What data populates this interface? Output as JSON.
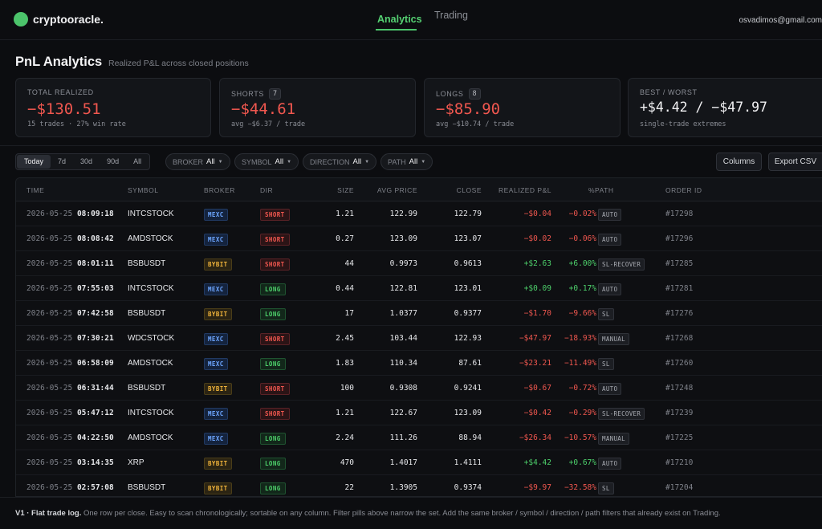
{
  "app": {
    "name": "cryptooracle.",
    "brand_color": "#4cc46b"
  },
  "nav": {
    "tabs": [
      {
        "label": "Analytics",
        "active": true
      },
      {
        "label": "Trading",
        "active": false
      }
    ]
  },
  "user": {
    "email": "osvadimos@gmail.com"
  },
  "page": {
    "title": "PnL Analytics",
    "subtitle": "Realized P&L across closed positions"
  },
  "cards": [
    {
      "label": "TOTAL REALIZED",
      "badge": "",
      "value": "−$130.51",
      "foot": "15 trades · 27% win rate"
    },
    {
      "label": "SHORTS",
      "badge": "7",
      "value": "−$44.61",
      "foot": "avg −$6.37 / trade"
    },
    {
      "label": "LONGS",
      "badge": "8",
      "value": "−$85.90",
      "foot": "avg −$10.74 / trade"
    },
    {
      "label": "BEST / WORST",
      "badge": "",
      "value": "+$4.42 / −$47.97",
      "foot": "single-trade extremes"
    }
  ],
  "filters": {
    "ranges": [
      "Today",
      "7d",
      "30d",
      "90d",
      "All"
    ],
    "active_range": "Today",
    "pills": [
      {
        "label": "BROKER",
        "value": "All"
      },
      {
        "label": "SYMBOL",
        "value": "All"
      },
      {
        "label": "DIRECTION",
        "value": "All"
      },
      {
        "label": "PATH",
        "value": "All"
      }
    ],
    "columns_label": "Columns",
    "export_label": "Export CSV"
  },
  "table": {
    "headers": [
      "TIME",
      "SYMBOL",
      "BROKER",
      "DIR",
      "SIZE",
      "AVG PRICE",
      "CLOSE",
      "REALIZED P&L",
      "%PATH",
      "ORDER ID"
    ],
    "rows": [
      {
        "date": "2026-05-25",
        "time": "08:09:18",
        "symbol": "INTCSTOCK",
        "broker": "MEXC",
        "dir": "SHORT",
        "size": "1.21",
        "avg": "122.99",
        "close": "122.79",
        "pnl": "−$0.04",
        "pct": "−0.02%",
        "path": "AUTO",
        "order": "#17298"
      },
      {
        "date": "2026-05-25",
        "time": "08:08:42",
        "symbol": "AMDSTOCK",
        "broker": "MEXC",
        "dir": "SHORT",
        "size": "0.27",
        "avg": "123.09",
        "close": "123.07",
        "pnl": "−$0.02",
        "pct": "−0.06%",
        "path": "AUTO",
        "order": "#17296"
      },
      {
        "date": "2026-05-25",
        "time": "08:01:11",
        "symbol": "BSBUSDT",
        "broker": "BYBIT",
        "dir": "SHORT",
        "size": "44",
        "avg": "0.9973",
        "close": "0.9613",
        "pnl": "+$2.63",
        "pct": "+6.00%",
        "path": "SL-RECOVER",
        "order": "#17285"
      },
      {
        "date": "2026-05-25",
        "time": "07:55:03",
        "symbol": "INTCSTOCK",
        "broker": "MEXC",
        "dir": "LONG",
        "size": "0.44",
        "avg": "122.81",
        "close": "123.01",
        "pnl": "+$0.09",
        "pct": "+0.17%",
        "path": "AUTO",
        "order": "#17281"
      },
      {
        "date": "2026-05-25",
        "time": "07:42:58",
        "symbol": "BSBUSDT",
        "broker": "BYBIT",
        "dir": "LONG",
        "size": "17",
        "avg": "1.0377",
        "close": "0.9377",
        "pnl": "−$1.70",
        "pct": "−9.66%",
        "path": "SL",
        "order": "#17276"
      },
      {
        "date": "2026-05-25",
        "time": "07:30:21",
        "symbol": "WDCSTOCK",
        "broker": "MEXC",
        "dir": "SHORT",
        "size": "2.45",
        "avg": "103.44",
        "close": "122.93",
        "pnl": "−$47.97",
        "pct": "−18.93%",
        "path": "MANUAL",
        "order": "#17268"
      },
      {
        "date": "2026-05-25",
        "time": "06:58:09",
        "symbol": "AMDSTOCK",
        "broker": "MEXC",
        "dir": "LONG",
        "size": "1.83",
        "avg": "110.34",
        "close": "87.61",
        "pnl": "−$23.21",
        "pct": "−11.49%",
        "path": "SL",
        "order": "#17260"
      },
      {
        "date": "2026-05-25",
        "time": "06:31:44",
        "symbol": "BSBUSDT",
        "broker": "BYBIT",
        "dir": "SHORT",
        "size": "100",
        "avg": "0.9308",
        "close": "0.9241",
        "pnl": "−$0.67",
        "pct": "−0.72%",
        "path": "AUTO",
        "order": "#17248"
      },
      {
        "date": "2026-05-25",
        "time": "05:47:12",
        "symbol": "INTCSTOCK",
        "broker": "MEXC",
        "dir": "SHORT",
        "size": "1.21",
        "avg": "122.67",
        "close": "123.09",
        "pnl": "−$0.42",
        "pct": "−0.29%",
        "path": "SL-RECOVER",
        "order": "#17239"
      },
      {
        "date": "2026-05-25",
        "time": "04:22:50",
        "symbol": "AMDSTOCK",
        "broker": "MEXC",
        "dir": "LONG",
        "size": "2.24",
        "avg": "111.26",
        "close": "88.94",
        "pnl": "−$26.34",
        "pct": "−10.57%",
        "path": "MANUAL",
        "order": "#17225"
      },
      {
        "date": "2026-05-25",
        "time": "03:14:35",
        "symbol": "XRP",
        "broker": "BYBIT",
        "dir": "LONG",
        "size": "470",
        "avg": "1.4017",
        "close": "1.4111",
        "pnl": "+$4.42",
        "pct": "+0.67%",
        "path": "AUTO",
        "order": "#17210"
      },
      {
        "date": "2026-05-25",
        "time": "02:57:08",
        "symbol": "BSBUSDT",
        "broker": "BYBIT",
        "dir": "LONG",
        "size": "22",
        "avg": "1.3905",
        "close": "0.9374",
        "pnl": "−$9.97",
        "pct": "−32.58%",
        "path": "SL",
        "order": "#17204"
      }
    ]
  },
  "footer": {
    "bold": "V1 · Flat trade log.",
    "text": " One row per close. Easy to scan chronologically; sortable on any column. Filter pills above narrow the set. Add the same broker / symbol / direction / path filters that already exist on Trading."
  },
  "colors": {
    "negative": "#f0574f",
    "positive": "#4dd06b",
    "mexc": "#6da6ff",
    "bybit": "#f1b43b"
  }
}
